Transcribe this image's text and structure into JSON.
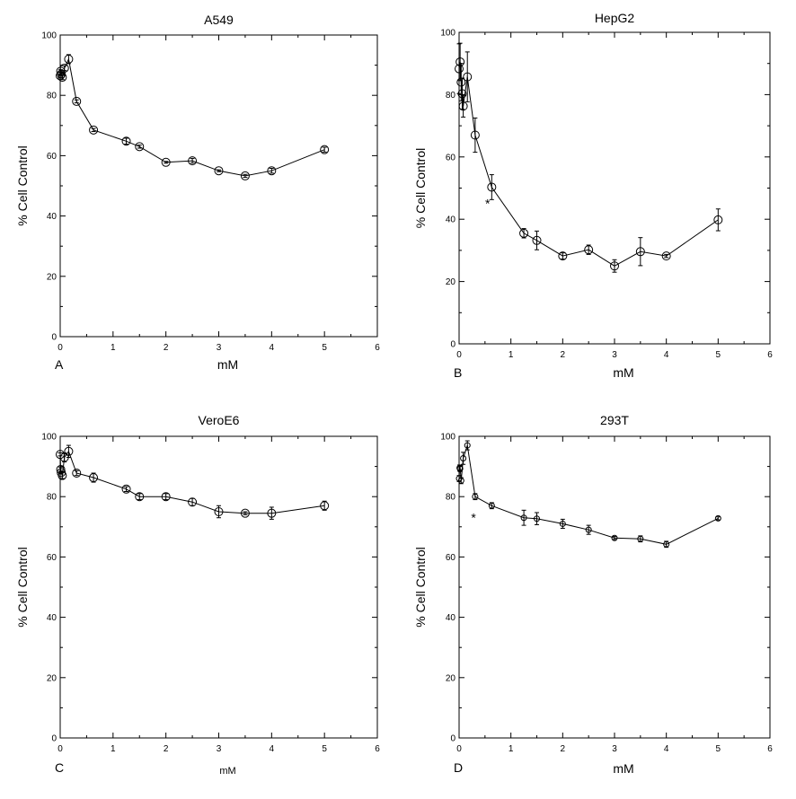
{
  "chart_data": [
    {
      "type": "line",
      "panel": "A",
      "title": "A549",
      "xlabel": "mM",
      "ylabel": "% Cell Control",
      "xlim": [
        0,
        6
      ],
      "ylim": [
        0,
        100
      ],
      "xticks": [
        "0",
        "1",
        "2",
        "3",
        "4",
        "5",
        "6"
      ],
      "yticks": [
        "0",
        "20",
        "40",
        "60",
        "80",
        "100"
      ],
      "grid": false,
      "x": [
        0.0,
        0.01,
        0.02,
        0.04,
        0.08,
        0.16,
        0.31,
        0.63,
        1.25,
        1.5,
        2.0,
        2.5,
        3.0,
        3.5,
        4.0,
        5.0
      ],
      "y": [
        86.5,
        88.0,
        87.0,
        86.0,
        89.0,
        92.0,
        78.0,
        68.5,
        64.8,
        63.0,
        57.8,
        58.3,
        55.0,
        53.3,
        55.0,
        62.0
      ],
      "error": [
        0.5,
        0.5,
        0.5,
        0.8,
        0.8,
        1.5,
        0.5,
        0.5,
        1.0,
        0.5,
        0.3,
        0.8,
        0.3,
        0.5,
        0.8,
        0.8
      ],
      "annotations": []
    },
    {
      "type": "line",
      "panel": "B",
      "title": "HepG2",
      "xlabel": "mM",
      "ylabel": "% Cell Control",
      "xlim": [
        0,
        6
      ],
      "ylim": [
        0,
        100
      ],
      "xticks": [
        "0",
        "1",
        "2",
        "3",
        "4",
        "5",
        "6"
      ],
      "yticks": [
        "0",
        "20",
        "40",
        "60",
        "80",
        "100"
      ],
      "grid": false,
      "x": [
        0.0,
        0.02,
        0.04,
        0.06,
        0.08,
        0.16,
        0.31,
        0.63,
        1.25,
        1.5,
        2.0,
        2.5,
        3.0,
        3.5,
        4.0,
        5.0
      ],
      "y": [
        88.3,
        90.5,
        84.0,
        80.3,
        76.3,
        85.7,
        67.0,
        50.3,
        35.5,
        33.2,
        28.2,
        30.2,
        25.0,
        29.6,
        28.2,
        39.8
      ],
      "error": [
        8.0,
        6.0,
        6.0,
        5.0,
        3.5,
        8.0,
        5.5,
        4.0,
        1.5,
        3.0,
        1.0,
        1.5,
        2.0,
        4.5,
        0.5,
        3.5
      ],
      "annotations": [
        {
          "text": "*",
          "x": 0.55,
          "y": 46
        }
      ]
    },
    {
      "type": "line",
      "panel": "C",
      "title": "VeroE6",
      "xlabel": "mM",
      "ylabel": "% Cell Control",
      "xlim": [
        0,
        6
      ],
      "ylim": [
        0,
        100
      ],
      "xticks": [
        "0",
        "1",
        "2",
        "3",
        "4",
        "5",
        "6"
      ],
      "yticks": [
        "0",
        "20",
        "40",
        "60",
        "80",
        "100"
      ],
      "grid": false,
      "x": [
        0.0,
        0.01,
        0.02,
        0.04,
        0.08,
        0.16,
        0.31,
        0.63,
        1.25,
        1.5,
        2.0,
        2.5,
        3.0,
        3.5,
        4.0,
        5.0
      ],
      "y": [
        94.0,
        89.0,
        88.0,
        87.0,
        93.0,
        95.0,
        87.8,
        86.3,
        82.5,
        80.0,
        80.0,
        78.2,
        75.0,
        74.5,
        74.5,
        77.0
      ],
      "error": [
        0.5,
        0.8,
        0.5,
        1.0,
        1.5,
        2.0,
        0.8,
        1.5,
        0.8,
        1.0,
        1.0,
        1.2,
        2.0,
        0.5,
        2.0,
        1.5
      ],
      "annotations": []
    },
    {
      "type": "line",
      "panel": "D",
      "title": "293T",
      "xlabel": "mM",
      "ylabel": "% Cell Control",
      "xlim": [
        0,
        6
      ],
      "ylim": [
        0,
        100
      ],
      "xticks": [
        "0",
        "1",
        "2",
        "3",
        "4",
        "5",
        "6"
      ],
      "yticks": [
        "0",
        "20",
        "40",
        "60",
        "80",
        "100"
      ],
      "grid": false,
      "x": [
        0.0,
        0.01,
        0.02,
        0.04,
        0.08,
        0.16,
        0.31,
        0.63,
        1.25,
        1.5,
        2.0,
        2.5,
        3.0,
        3.5,
        4.0,
        5.0
      ],
      "y": [
        86.0,
        89.5,
        89.3,
        85.3,
        92.7,
        97.0,
        80.0,
        77.0,
        73.0,
        72.7,
        71.0,
        69.0,
        66.3,
        66.0,
        64.2,
        72.8
      ],
      "error": [
        1.0,
        1.0,
        1.0,
        1.0,
        2.0,
        1.5,
        1.0,
        1.0,
        2.5,
        2.0,
        1.5,
        1.5,
        0.5,
        1.0,
        1.0,
        0.5
      ],
      "annotations": [
        {
          "text": "*",
          "x": 0.28,
          "y": 74
        }
      ]
    }
  ]
}
